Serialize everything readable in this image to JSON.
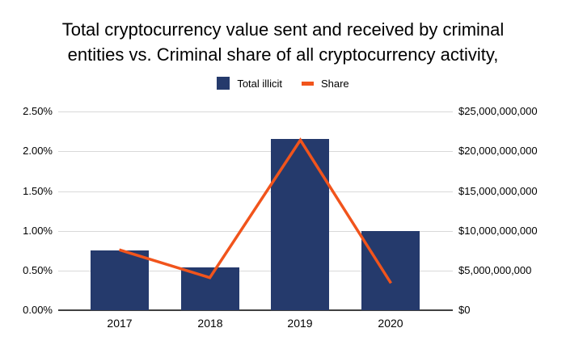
{
  "title": {
    "line1": "Total cryptocurrency value sent and received by criminal",
    "line2": "entities vs. Criminal share of all cryptocurrency activity,"
  },
  "legend": {
    "items": [
      {
        "label": "Total illicit",
        "marker": "square",
        "color": "#253A6C"
      },
      {
        "label": "Share",
        "marker": "dash",
        "color": "#F1541C"
      }
    ]
  },
  "chart_data": {
    "type": "bar+line combo",
    "title": "Total cryptocurrency value sent and received by criminal entities vs. Criminal share of all cryptocurrency activity,",
    "categories": [
      "2017",
      "2018",
      "2019",
      "2020"
    ],
    "series": [
      {
        "name": "Total illicit",
        "type": "bar",
        "axis": "right",
        "color": "#253A6C",
        "values": [
          7500000000,
          5400000000,
          21500000000,
          10000000000
        ]
      },
      {
        "name": "Share",
        "type": "line",
        "axis": "left",
        "color": "#F1541C",
        "values": [
          0.76,
          0.41,
          2.14,
          0.34
        ],
        "unit": "%"
      }
    ],
    "left_axis": {
      "ticks": [
        "2.50%",
        "2.00%",
        "1.50%",
        "1.00%",
        "0.50%",
        "0.00%"
      ],
      "min": 0,
      "max": 2.5,
      "unit": "percent"
    },
    "right_axis": {
      "ticks": [
        "$25,000,000,000",
        "$20,000,000,000",
        "$15,000,000,000",
        "$10,000,000,000",
        "$5,000,000,000",
        "$0"
      ],
      "min": 0,
      "max": 25000000000,
      "unit": "USD"
    },
    "grid": "horizontal",
    "legend_position": "top-center",
    "colors": {
      "grid": "#D9D9D9",
      "axis_line": "#404040",
      "background": "#FFFFFF",
      "text": "#000000"
    }
  }
}
